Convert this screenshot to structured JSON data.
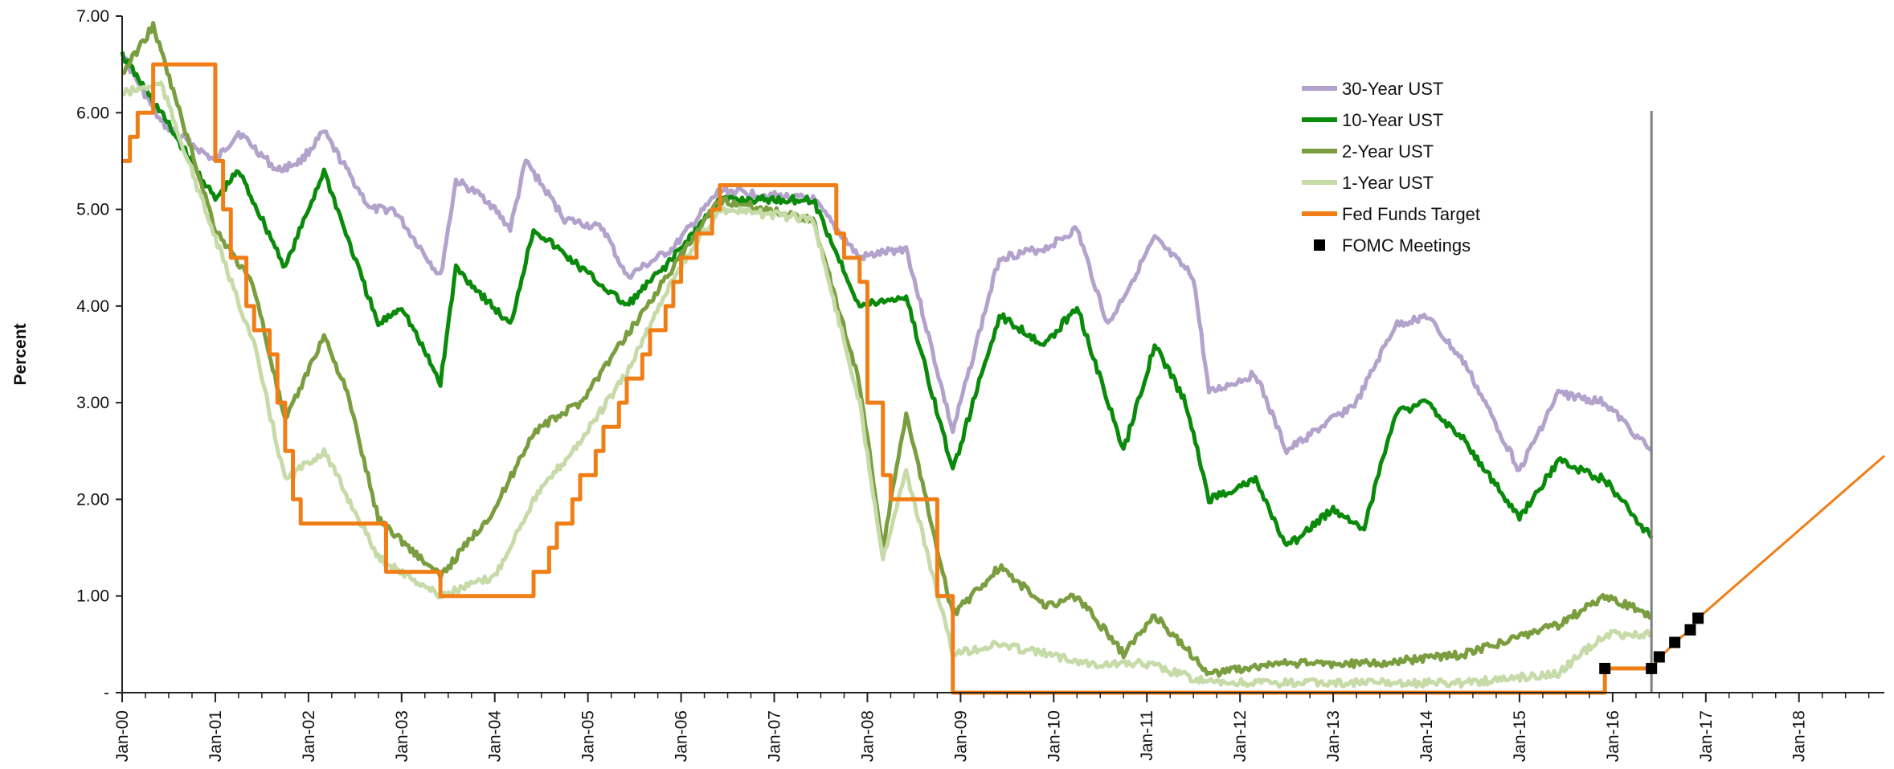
{
  "chart_data": {
    "type": "line",
    "title": "",
    "xlabel": "",
    "ylabel": "Percent",
    "ylim": [
      0,
      7
    ],
    "y_ticks": [
      {
        "value": 0,
        "label": "-"
      },
      {
        "value": 1,
        "label": "1.00"
      },
      {
        "value": 2,
        "label": "2.00"
      },
      {
        "value": 3,
        "label": "3.00"
      },
      {
        "value": 4,
        "label": "4.00"
      },
      {
        "value": 5,
        "label": "5.00"
      },
      {
        "value": 6,
        "label": "6.00"
      },
      {
        "value": 7,
        "label": "7.00"
      }
    ],
    "xlim": [
      "2000-01",
      "2018-12"
    ],
    "x_ticks": [
      "Jan-00",
      "Jan-01",
      "Jan-02",
      "Jan-03",
      "Jan-04",
      "Jan-05",
      "Jan-06",
      "Jan-07",
      "Jan-08",
      "Jan-09",
      "Jan-10",
      "Jan-11",
      "Jan-12",
      "Jan-13",
      "Jan-14",
      "Jan-15",
      "Jan-16",
      "Jan-17",
      "Jan-18"
    ],
    "x_tick_dates": [
      "2000-01",
      "2001-01",
      "2002-01",
      "2003-01",
      "2004-01",
      "2005-01",
      "2006-01",
      "2007-01",
      "2008-01",
      "2009-01",
      "2010-01",
      "2011-01",
      "2012-01",
      "2013-01",
      "2014-01",
      "2015-01",
      "2016-01",
      "2017-01",
      "2018-01"
    ],
    "legend_position": "top-right",
    "vertical_marker": "2016-06",
    "series": [
      {
        "name": "30-Year UST",
        "color": "#b3a2cc",
        "width": 5,
        "points": [
          [
            "2000-01",
            6.6
          ],
          [
            "2000-06",
            5.9
          ],
          [
            "2001-01",
            5.5
          ],
          [
            "2001-04",
            5.8
          ],
          [
            "2001-09",
            5.4
          ],
          [
            "2001-12",
            5.5
          ],
          [
            "2002-03",
            5.8
          ],
          [
            "2002-09",
            5.0
          ],
          [
            "2002-12",
            5.0
          ],
          [
            "2003-06",
            4.3
          ],
          [
            "2003-08",
            5.3
          ],
          [
            "2003-12",
            5.1
          ],
          [
            "2004-03",
            4.8
          ],
          [
            "2004-05",
            5.5
          ],
          [
            "2004-10",
            4.9
          ],
          [
            "2005-03",
            4.8
          ],
          [
            "2005-06",
            4.3
          ],
          [
            "2005-12",
            4.6
          ],
          [
            "2006-06",
            5.2
          ],
          [
            "2007-06",
            5.1
          ],
          [
            "2007-12",
            4.5
          ],
          [
            "2008-06",
            4.6
          ],
          [
            "2008-12",
            2.7
          ],
          [
            "2009-06",
            4.5
          ],
          [
            "2009-12",
            4.6
          ],
          [
            "2010-04",
            4.8
          ],
          [
            "2010-08",
            3.8
          ],
          [
            "2011-02",
            4.7
          ],
          [
            "2011-07",
            4.3
          ],
          [
            "2011-09",
            3.1
          ],
          [
            "2012-03",
            3.3
          ],
          [
            "2012-07",
            2.5
          ],
          [
            "2013-04",
            3.0
          ],
          [
            "2013-09",
            3.8
          ],
          [
            "2014-01",
            3.9
          ],
          [
            "2014-06",
            3.4
          ],
          [
            "2015-01",
            2.3
          ],
          [
            "2015-06",
            3.1
          ],
          [
            "2015-12",
            3.0
          ],
          [
            "2016-06",
            2.5
          ]
        ]
      },
      {
        "name": "10-Year UST",
        "color": "#0a8a0a",
        "width": 5,
        "points": [
          [
            "2000-01",
            6.6
          ],
          [
            "2000-06",
            6.0
          ],
          [
            "2001-01",
            5.1
          ],
          [
            "2001-04",
            5.4
          ],
          [
            "2001-10",
            4.4
          ],
          [
            "2002-03",
            5.4
          ],
          [
            "2002-10",
            3.8
          ],
          [
            "2003-01",
            4.0
          ],
          [
            "2003-06",
            3.2
          ],
          [
            "2003-08",
            4.4
          ],
          [
            "2004-03",
            3.8
          ],
          [
            "2004-06",
            4.8
          ],
          [
            "2005-06",
            4.0
          ],
          [
            "2005-12",
            4.5
          ],
          [
            "2006-06",
            5.1
          ],
          [
            "2007-06",
            5.1
          ],
          [
            "2007-12",
            4.0
          ],
          [
            "2008-06",
            4.1
          ],
          [
            "2008-12",
            2.3
          ],
          [
            "2009-06",
            3.9
          ],
          [
            "2009-12",
            3.6
          ],
          [
            "2010-04",
            4.0
          ],
          [
            "2010-10",
            2.5
          ],
          [
            "2011-02",
            3.6
          ],
          [
            "2011-06",
            3.0
          ],
          [
            "2011-09",
            2.0
          ],
          [
            "2012-03",
            2.2
          ],
          [
            "2012-07",
            1.5
          ],
          [
            "2013-01",
            1.9
          ],
          [
            "2013-05",
            1.7
          ],
          [
            "2013-09",
            2.9
          ],
          [
            "2014-01",
            3.0
          ],
          [
            "2014-06",
            2.6
          ],
          [
            "2015-01",
            1.8
          ],
          [
            "2015-06",
            2.4
          ],
          [
            "2015-12",
            2.2
          ],
          [
            "2016-06",
            1.6
          ]
        ]
      },
      {
        "name": "2-Year UST",
        "color": "#7a9e3f",
        "width": 5,
        "points": [
          [
            "2000-01",
            6.4
          ],
          [
            "2000-05",
            6.9
          ],
          [
            "2001-01",
            4.8
          ],
          [
            "2001-06",
            4.2
          ],
          [
            "2001-10",
            2.8
          ],
          [
            "2002-03",
            3.7
          ],
          [
            "2002-06",
            3.1
          ],
          [
            "2002-10",
            1.8
          ],
          [
            "2003-06",
            1.2
          ],
          [
            "2004-01",
            1.9
          ],
          [
            "2004-06",
            2.7
          ],
          [
            "2004-12",
            3.0
          ],
          [
            "2005-06",
            3.7
          ],
          [
            "2005-12",
            4.4
          ],
          [
            "2006-06",
            5.1
          ],
          [
            "2007-06",
            4.9
          ],
          [
            "2007-12",
            3.2
          ],
          [
            "2008-03",
            1.5
          ],
          [
            "2008-06",
            2.9
          ],
          [
            "2008-12",
            0.8
          ],
          [
            "2009-06",
            1.3
          ],
          [
            "2009-12",
            0.9
          ],
          [
            "2010-04",
            1.0
          ],
          [
            "2010-10",
            0.4
          ],
          [
            "2011-02",
            0.8
          ],
          [
            "2011-09",
            0.2
          ],
          [
            "2012-06",
            0.3
          ],
          [
            "2013-06",
            0.3
          ],
          [
            "2014-06",
            0.4
          ],
          [
            "2015-06",
            0.7
          ],
          [
            "2015-12",
            1.0
          ],
          [
            "2016-06",
            0.8
          ]
        ]
      },
      {
        "name": "1-Year UST",
        "color": "#c6dba8",
        "width": 5,
        "points": [
          [
            "2000-01",
            6.2
          ],
          [
            "2000-06",
            6.3
          ],
          [
            "2001-01",
            4.7
          ],
          [
            "2001-06",
            3.6
          ],
          [
            "2001-10",
            2.2
          ],
          [
            "2002-03",
            2.5
          ],
          [
            "2002-10",
            1.4
          ],
          [
            "2003-06",
            1.0
          ],
          [
            "2004-01",
            1.2
          ],
          [
            "2004-06",
            2.0
          ],
          [
            "2004-12",
            2.6
          ],
          [
            "2005-06",
            3.3
          ],
          [
            "2005-12",
            4.3
          ],
          [
            "2006-06",
            5.0
          ],
          [
            "2007-06",
            4.9
          ],
          [
            "2007-12",
            3.0
          ],
          [
            "2008-03",
            1.4
          ],
          [
            "2008-06",
            2.3
          ],
          [
            "2008-12",
            0.4
          ],
          [
            "2009-06",
            0.5
          ],
          [
            "2010-06",
            0.3
          ],
          [
            "2011-01",
            0.3
          ],
          [
            "2011-09",
            0.1
          ],
          [
            "2013-06",
            0.1
          ],
          [
            "2014-06",
            0.1
          ],
          [
            "2015-06",
            0.2
          ],
          [
            "2015-12",
            0.6
          ],
          [
            "2016-06",
            0.6
          ]
        ]
      },
      {
        "name": "Fed Funds Target",
        "color": "#f07e16",
        "width": 5,
        "step": true,
        "points": [
          [
            "2000-01",
            5.5
          ],
          [
            "2000-02",
            5.75
          ],
          [
            "2000-03",
            6.0
          ],
          [
            "2000-05",
            6.5
          ],
          [
            "2001-01",
            5.5
          ],
          [
            "2001-02",
            5.0
          ],
          [
            "2001-03",
            4.5
          ],
          [
            "2001-05",
            4.0
          ],
          [
            "2001-06",
            3.75
          ],
          [
            "2001-08",
            3.5
          ],
          [
            "2001-09",
            3.0
          ],
          [
            "2001-10",
            2.5
          ],
          [
            "2001-11",
            2.0
          ],
          [
            "2001-12",
            1.75
          ],
          [
            "2002-11",
            1.25
          ],
          [
            "2003-06",
            1.0
          ],
          [
            "2004-06",
            1.25
          ],
          [
            "2004-08",
            1.5
          ],
          [
            "2004-09",
            1.75
          ],
          [
            "2004-11",
            2.0
          ],
          [
            "2004-12",
            2.25
          ],
          [
            "2005-02",
            2.5
          ],
          [
            "2005-03",
            2.75
          ],
          [
            "2005-05",
            3.0
          ],
          [
            "2005-06",
            3.25
          ],
          [
            "2005-08",
            3.5
          ],
          [
            "2005-09",
            3.75
          ],
          [
            "2005-11",
            4.0
          ],
          [
            "2005-12",
            4.25
          ],
          [
            "2006-01",
            4.5
          ],
          [
            "2006-03",
            4.75
          ],
          [
            "2006-05",
            5.0
          ],
          [
            "2006-06",
            5.25
          ],
          [
            "2007-09",
            4.75
          ],
          [
            "2007-10",
            4.5
          ],
          [
            "2007-12",
            4.25
          ],
          [
            "2008-01",
            3.0
          ],
          [
            "2008-03",
            2.25
          ],
          [
            "2008-04",
            2.0
          ],
          [
            "2008-10",
            1.0
          ],
          [
            "2008-12",
            0.0
          ],
          [
            "2015-12",
            0.25
          ],
          [
            "2016-06",
            0.25
          ]
        ]
      },
      {
        "name": "Fed Funds Target projection",
        "color": "#f07e16",
        "width": 3,
        "points": [
          [
            "2016-06",
            0.25
          ],
          [
            "2016-07",
            0.35
          ],
          [
            "2016-09",
            0.52
          ],
          [
            "2016-11",
            0.65
          ],
          [
            "2016-12",
            0.77
          ],
          [
            "2018-12",
            2.45
          ]
        ]
      }
    ],
    "fomc_meetings": {
      "name": "FOMC Meetings",
      "color": "#000000",
      "points": [
        [
          "2015-12",
          0.25
        ],
        [
          "2016-06",
          0.25
        ],
        [
          "2016-07",
          0.37
        ],
        [
          "2016-09",
          0.52
        ],
        [
          "2016-11",
          0.65
        ],
        [
          "2016-12",
          0.77
        ]
      ]
    }
  }
}
